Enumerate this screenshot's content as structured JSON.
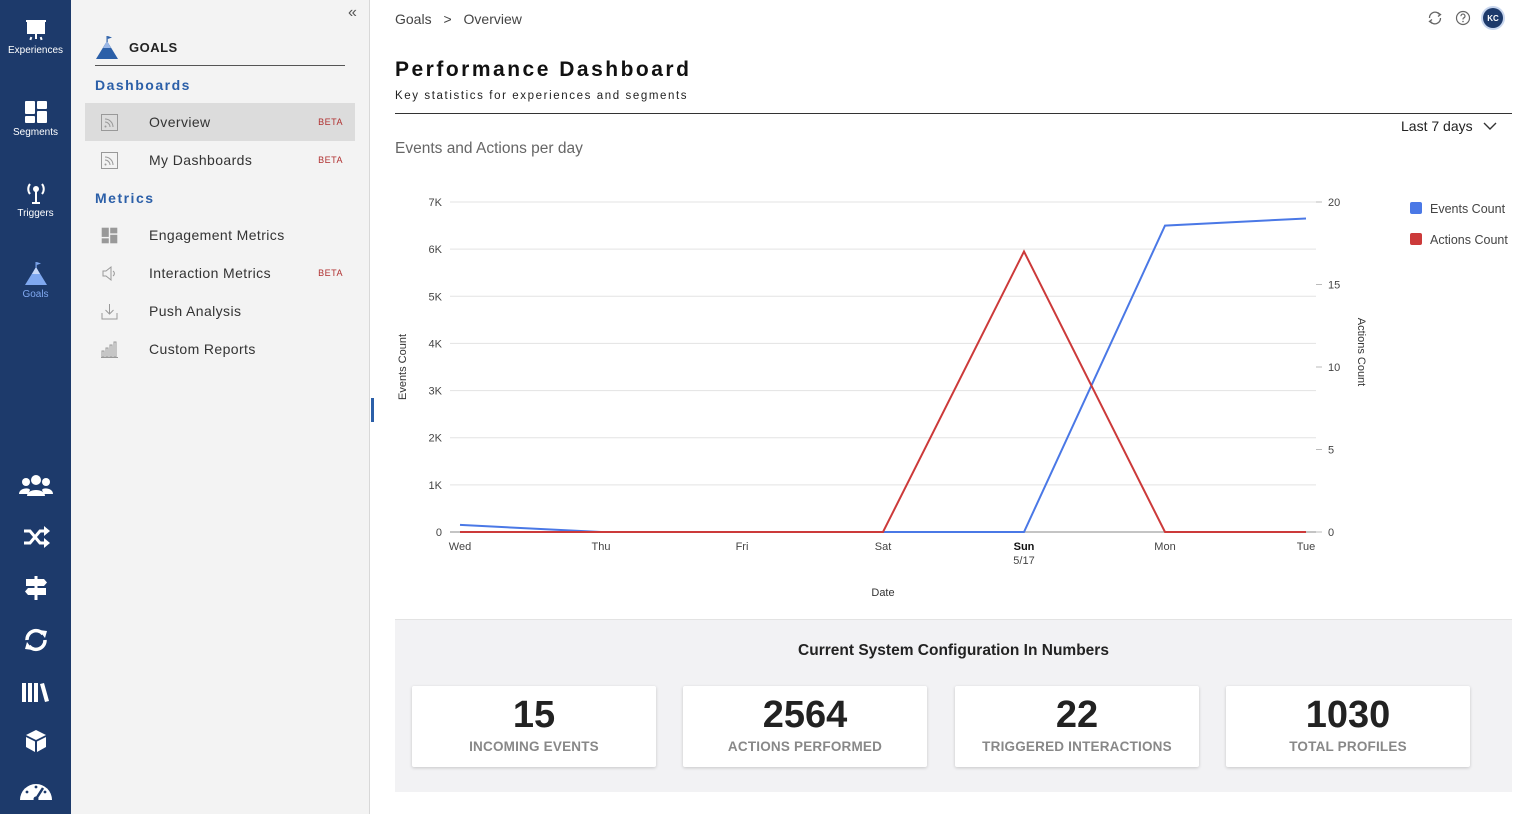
{
  "rail": {
    "items": [
      {
        "label": "Experiences",
        "icon": "presentation-board-icon"
      },
      {
        "label": "Segments",
        "icon": "tiles-icon"
      },
      {
        "label": "Triggers",
        "icon": "antenna-icon"
      },
      {
        "label": "Goals",
        "icon": "mountain-flag-icon"
      }
    ],
    "tools": [
      "users-icon",
      "shuffle-icon",
      "signpost-icon",
      "refresh-icon",
      "library-icon",
      "package-icon",
      "speedometer-icon"
    ],
    "active_color": "#7fa8f0"
  },
  "sidebar": {
    "header": "GOALS",
    "sections": [
      {
        "title": "Dashboards",
        "items": [
          {
            "label": "Overview",
            "badge": "BETA",
            "icon": "rss-icon"
          },
          {
            "label": "My Dashboards",
            "badge": "BETA",
            "icon": "rss-icon"
          }
        ]
      },
      {
        "title": "Metrics",
        "items": [
          {
            "label": "Engagement Metrics",
            "badge": "",
            "icon": "tiles-icon"
          },
          {
            "label": "Interaction Metrics",
            "badge": "BETA",
            "icon": "speaker-icon"
          },
          {
            "label": "Push Analysis",
            "badge": "",
            "icon": "download-icon"
          },
          {
            "label": "Custom Reports",
            "badge": "",
            "icon": "bar-chart-icon"
          }
        ]
      }
    ]
  },
  "breadcrumb": {
    "parent": "Goals",
    "separator": ">",
    "current": "Overview"
  },
  "user": {
    "initials": "KC"
  },
  "page": {
    "title": "Performance Dashboard",
    "subtitle": "Key statistics for experiences and segments"
  },
  "range": {
    "label": "Last 7 days"
  },
  "chart_data": {
    "type": "line",
    "title": "Events and Actions per day",
    "xlabel": "Date",
    "ylabel": "Events Count",
    "y2label": "Actions Count",
    "categories": [
      "Wed",
      "Thu",
      "Fri",
      "Sat",
      "Sun",
      "Mon",
      "Tue"
    ],
    "category_sublabels": [
      "",
      "",
      "",
      "",
      "5/17",
      "",
      ""
    ],
    "bold_categories": [
      "Sun"
    ],
    "ylim": [
      0,
      7000
    ],
    "y_ticks": [
      "0",
      "1K",
      "2K",
      "3K",
      "4K",
      "5K",
      "6K",
      "7K"
    ],
    "y2lim": [
      0,
      20
    ],
    "y2_ticks": [
      "0",
      "5",
      "10",
      "15",
      "20"
    ],
    "legend_position": "right",
    "grid": true,
    "series": [
      {
        "name": "Events Count",
        "axis": "left",
        "color": "#4a78e6",
        "values": [
          150,
          0,
          0,
          0,
          0,
          6500,
          6650
        ]
      },
      {
        "name": "Actions Count",
        "axis": "right",
        "color": "#cc3a3a",
        "values": [
          0,
          0,
          0,
          0,
          17,
          0,
          0
        ]
      }
    ]
  },
  "stats": {
    "title": "Current System Configuration In Numbers",
    "cards": [
      {
        "value": "15",
        "label": "INCOMING EVENTS"
      },
      {
        "value": "2564",
        "label": "ACTIONS PERFORMED"
      },
      {
        "value": "22",
        "label": "TRIGGERED INTERACTIONS"
      },
      {
        "value": "1030",
        "label": "TOTAL PROFILES"
      }
    ]
  }
}
